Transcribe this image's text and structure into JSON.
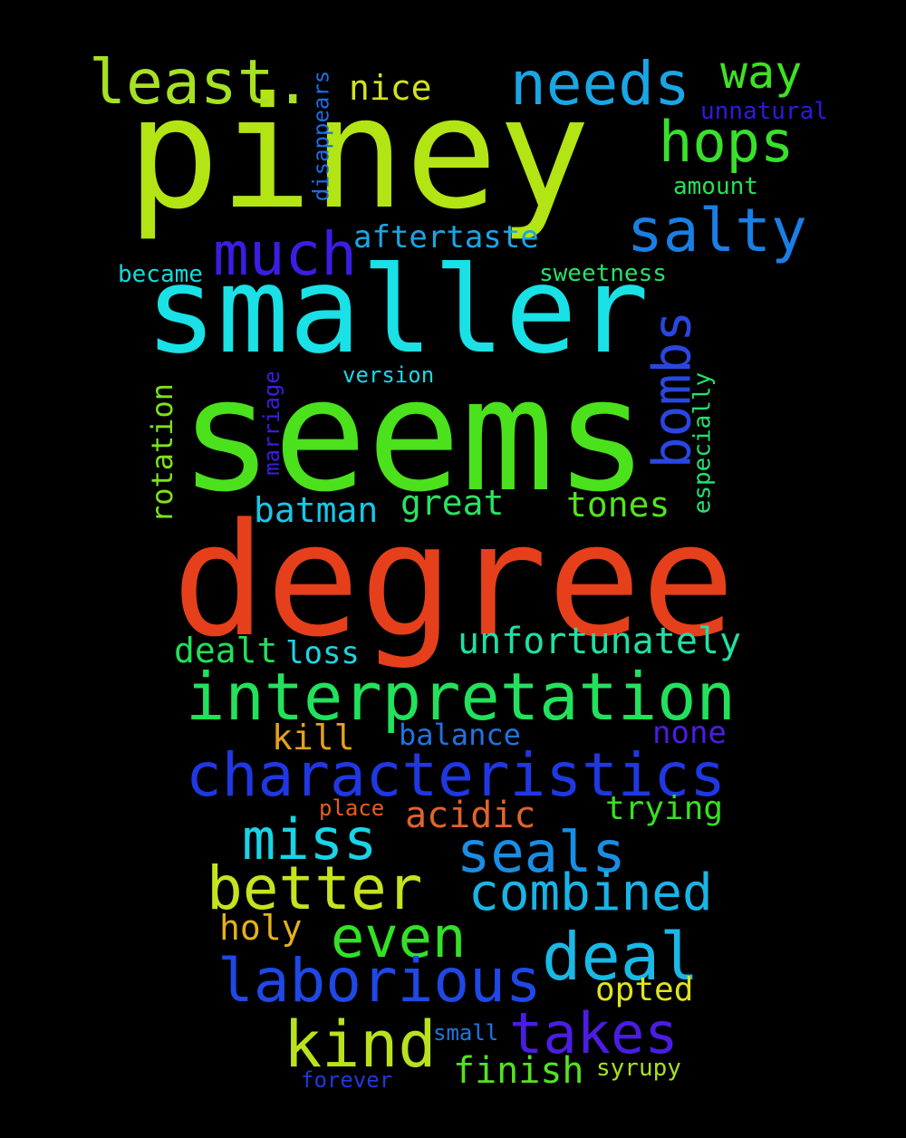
{
  "words": [
    {
      "text": "piney",
      "color": "#b3e414"
    },
    {
      "text": "seems",
      "color": "#4be11c"
    },
    {
      "text": "degree",
      "color": "#e5401b"
    },
    {
      "text": "smaller",
      "color": "#19e1e6"
    },
    {
      "text": "interpretation",
      "color": "#22e25c"
    },
    {
      "text": "characteristics",
      "color": "#1f38e3"
    },
    {
      "text": "least.",
      "color": "#a7e123"
    },
    {
      "text": "needs",
      "color": "#1aa5e5"
    },
    {
      "text": "way",
      "color": "#3ee223"
    },
    {
      "text": "nice",
      "color": "#d3e31c"
    },
    {
      "text": "hops",
      "color": "#39e02c"
    },
    {
      "text": "unnatural",
      "color": "#3019e0"
    },
    {
      "text": "amount",
      "color": "#27e058"
    },
    {
      "text": "salty",
      "color": "#1a7ee5"
    },
    {
      "text": "much",
      "color": "#3b1de4"
    },
    {
      "text": "aftertaste",
      "color": "#1aa6e6"
    },
    {
      "text": "became",
      "color": "#1ad8d8"
    },
    {
      "text": "sweetness",
      "color": "#24e26c"
    },
    {
      "text": "version",
      "color": "#19d9e6"
    },
    {
      "text": "bombs",
      "color": "#2947e0"
    },
    {
      "text": "disappears",
      "color": "#1c6ee4"
    },
    {
      "text": "rotation",
      "color": "#7ee21e"
    },
    {
      "text": "marriage",
      "color": "#3b1ee4"
    },
    {
      "text": "especially",
      "color": "#23e16f"
    },
    {
      "text": "batman",
      "color": "#19c7e6"
    },
    {
      "text": "great",
      "color": "#2ae264"
    },
    {
      "text": "tones",
      "color": "#54e220"
    },
    {
      "text": "dealt",
      "color": "#22e05a"
    },
    {
      "text": "loss",
      "color": "#1ed5e5"
    },
    {
      "text": "unfortunately",
      "color": "#1fe0a4"
    },
    {
      "text": "kill",
      "color": "#e3a21d"
    },
    {
      "text": "balance",
      "color": "#2172e2"
    },
    {
      "text": "none",
      "color": "#4b1de3"
    },
    {
      "text": "place",
      "color": "#e35f20"
    },
    {
      "text": "acidic",
      "color": "#e0632c"
    },
    {
      "text": "trying",
      "color": "#38e021"
    },
    {
      "text": "miss",
      "color": "#19d4e6"
    },
    {
      "text": "seals",
      "color": "#1a8ee5"
    },
    {
      "text": "better",
      "color": "#c6e31d"
    },
    {
      "text": "combined",
      "color": "#1ab4e6"
    },
    {
      "text": "even",
      "color": "#33e226"
    },
    {
      "text": "holy",
      "color": "#e3b21c"
    },
    {
      "text": "deal",
      "color": "#19b9e6"
    },
    {
      "text": "laborious",
      "color": "#1f48e4"
    },
    {
      "text": "opted",
      "color": "#e0e31b"
    },
    {
      "text": "kind",
      "color": "#b9e21d"
    },
    {
      "text": "takes",
      "color": "#4b1de3"
    },
    {
      "text": "small",
      "color": "#1a7ae5"
    },
    {
      "text": "finish",
      "color": "#53e222"
    },
    {
      "text": "syrupy",
      "color": "#a8e21d"
    },
    {
      "text": "forever",
      "color": "#2038e0"
    }
  ]
}
